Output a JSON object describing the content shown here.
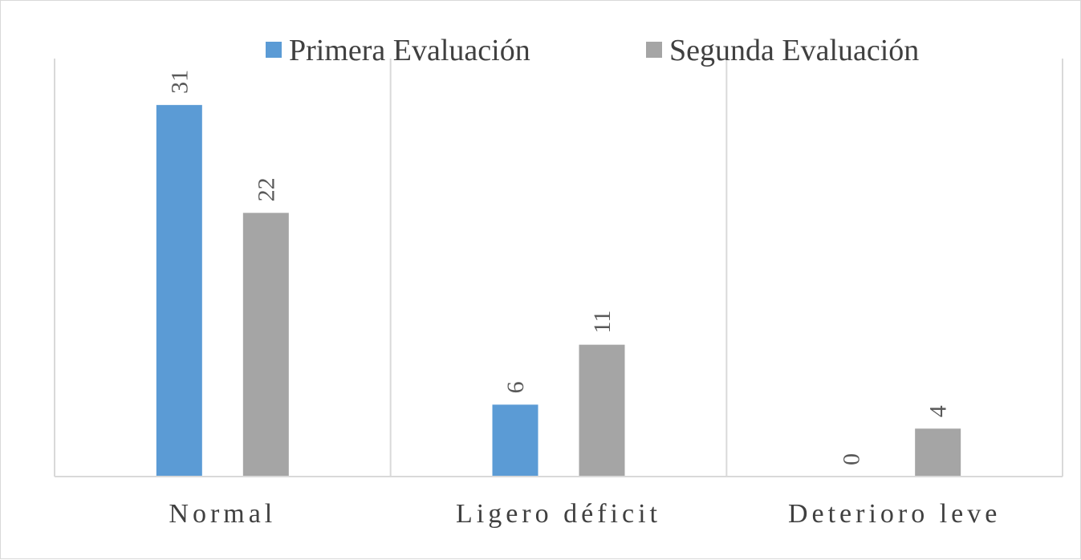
{
  "chart_data": {
    "type": "bar",
    "title": "",
    "xlabel": "",
    "ylabel": "",
    "categories": [
      "Normal",
      "Ligero déficit",
      "Deterioro leve"
    ],
    "series": [
      {
        "name": "Primera Evaluación",
        "values": [
          31,
          6,
          0
        ],
        "color": "#5b9bd5"
      },
      {
        "name": "Segunda Evaluación",
        "values": [
          22,
          11,
          4
        ],
        "color": "#a5a5a5"
      }
    ],
    "ylim": [
      0,
      35
    ],
    "grid": "vertical category separators",
    "legend": "top-center",
    "data_labels": "rotated vertical above bars",
    "axis_color": "#d9d9d9"
  }
}
